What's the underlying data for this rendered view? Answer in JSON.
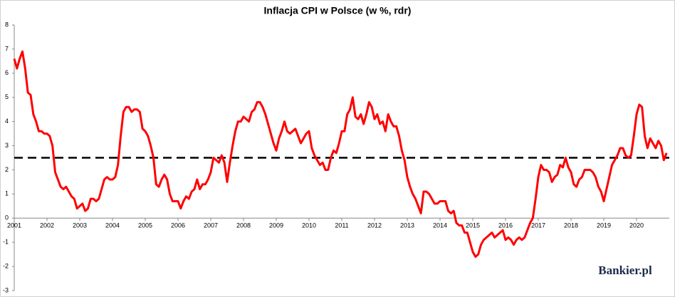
{
  "chart_data": {
    "type": "line",
    "title": "Inflacja CPI w Polsce (w %, rdr)",
    "watermark": "Bankier.pl",
    "categories": [
      "2001",
      null,
      null,
      null,
      null,
      null,
      null,
      null,
      null,
      null,
      null,
      null,
      "2002",
      null,
      null,
      null,
      null,
      null,
      null,
      null,
      null,
      null,
      null,
      null,
      "2003",
      null,
      null,
      null,
      null,
      null,
      null,
      null,
      null,
      null,
      null,
      null,
      "2004",
      null,
      null,
      null,
      null,
      null,
      null,
      null,
      null,
      null,
      null,
      null,
      "2005",
      null,
      null,
      null,
      null,
      null,
      null,
      null,
      null,
      null,
      null,
      null,
      "2006",
      null,
      null,
      null,
      null,
      null,
      null,
      null,
      null,
      null,
      null,
      null,
      "2007",
      null,
      null,
      null,
      null,
      null,
      null,
      null,
      null,
      null,
      null,
      null,
      "2008",
      null,
      null,
      null,
      null,
      null,
      null,
      null,
      null,
      null,
      null,
      null,
      "2009",
      null,
      null,
      null,
      null,
      null,
      null,
      null,
      null,
      null,
      null,
      null,
      "2010",
      null,
      null,
      null,
      null,
      null,
      null,
      null,
      null,
      null,
      null,
      null,
      "2011",
      null,
      null,
      null,
      null,
      null,
      null,
      null,
      null,
      null,
      null,
      null,
      "2012",
      null,
      null,
      null,
      null,
      null,
      null,
      null,
      null,
      null,
      null,
      null,
      "2013",
      null,
      null,
      null,
      null,
      null,
      null,
      null,
      null,
      null,
      null,
      null,
      "2014",
      null,
      null,
      null,
      null,
      null,
      null,
      null,
      null,
      null,
      null,
      null,
      "2015",
      null,
      null,
      null,
      null,
      null,
      null,
      null,
      null,
      null,
      null,
      null,
      "2016",
      null,
      null,
      null,
      null,
      null,
      null,
      null,
      null,
      null,
      null,
      null,
      "2017",
      null,
      null,
      null,
      null,
      null,
      null,
      null,
      null,
      null,
      null,
      null,
      "2018",
      null,
      null,
      null,
      null,
      null,
      null,
      null,
      null,
      null,
      null,
      null,
      "2019",
      null,
      null,
      null,
      null,
      null,
      null,
      null,
      null,
      null,
      null,
      null,
      "2020",
      null,
      null,
      null,
      null,
      null,
      null,
      null,
      null,
      null,
      null,
      null
    ],
    "series": [
      {
        "name": "CPI",
        "color": "#ff0000",
        "values": [
          6.6,
          6.2,
          6.6,
          6.9,
          6.2,
          5.2,
          5.1,
          4.3,
          4.0,
          3.6,
          3.6,
          3.5,
          3.5,
          3.4,
          3.0,
          1.9,
          1.6,
          1.3,
          1.2,
          1.3,
          1.1,
          0.9,
          0.8,
          0.4,
          0.5,
          0.6,
          0.3,
          0.4,
          0.8,
          0.8,
          0.7,
          0.8,
          1.2,
          1.6,
          1.7,
          1.6,
          1.6,
          1.7,
          2.2,
          3.4,
          4.4,
          4.6,
          4.6,
          4.4,
          4.5,
          4.5,
          4.4,
          3.7,
          3.6,
          3.4,
          3.0,
          2.5,
          1.4,
          1.3,
          1.6,
          1.8,
          1.6,
          1.0,
          0.7,
          0.7,
          0.7,
          0.4,
          0.7,
          0.9,
          0.8,
          1.1,
          1.2,
          1.6,
          1.2,
          1.4,
          1.4,
          1.6,
          1.9,
          2.5,
          2.4,
          2.3,
          2.6,
          2.3,
          1.5,
          2.3,
          3.0,
          3.6,
          4.0,
          4.0,
          4.2,
          4.1,
          4.0,
          4.4,
          4.5,
          4.8,
          4.8,
          4.6,
          4.3,
          3.9,
          3.5,
          3.1,
          2.8,
          3.3,
          3.6,
          4.0,
          3.6,
          3.5,
          3.6,
          3.7,
          3.4,
          3.1,
          3.3,
          3.5,
          3.6,
          2.9,
          2.6,
          2.4,
          2.2,
          2.3,
          2.0,
          2.0,
          2.5,
          2.8,
          2.7,
          3.1,
          3.6,
          3.6,
          4.3,
          4.5,
          5.0,
          4.2,
          4.1,
          4.3,
          3.9,
          4.3,
          4.8,
          4.6,
          4.1,
          4.3,
          3.9,
          4.0,
          3.6,
          4.3,
          4.0,
          3.8,
          3.8,
          3.4,
          2.8,
          2.4,
          1.7,
          1.3,
          1.0,
          0.8,
          0.5,
          0.2,
          1.1,
          1.1,
          1.0,
          0.8,
          0.6,
          0.6,
          0.7,
          0.7,
          0.7,
          0.3,
          0.2,
          0.3,
          -0.2,
          -0.3,
          -0.3,
          -0.6,
          -0.6,
          -1.0,
          -1.4,
          -1.6,
          -1.5,
          -1.1,
          -0.9,
          -0.8,
          -0.7,
          -0.6,
          -0.8,
          -0.7,
          -0.6,
          -0.5,
          -0.9,
          -0.8,
          -0.9,
          -1.1,
          -0.9,
          -0.8,
          -0.9,
          -0.8,
          -0.5,
          -0.2,
          0.0,
          0.8,
          1.7,
          2.2,
          2.0,
          2.0,
          1.9,
          1.5,
          1.7,
          1.8,
          2.2,
          2.1,
          2.5,
          2.1,
          1.9,
          1.4,
          1.3,
          1.6,
          1.7,
          2.0,
          2.0,
          2.0,
          1.9,
          1.7,
          1.3,
          1.1,
          0.7,
          1.2,
          1.7,
          2.2,
          2.4,
          2.6,
          2.9,
          2.9,
          2.6,
          2.5,
          2.6,
          3.4,
          4.3,
          4.7,
          4.6,
          3.4,
          2.9,
          3.3,
          3.1,
          2.9,
          3.2,
          3.0,
          2.4,
          2.7
        ]
      }
    ],
    "reference_line": {
      "value": 2.5,
      "color": "#000000",
      "dashed": true
    },
    "ylim": [
      -3,
      8
    ],
    "yticks": [
      -3,
      -2,
      -1,
      0,
      1,
      2,
      3,
      4,
      5,
      6,
      7,
      8
    ],
    "grid": false
  }
}
